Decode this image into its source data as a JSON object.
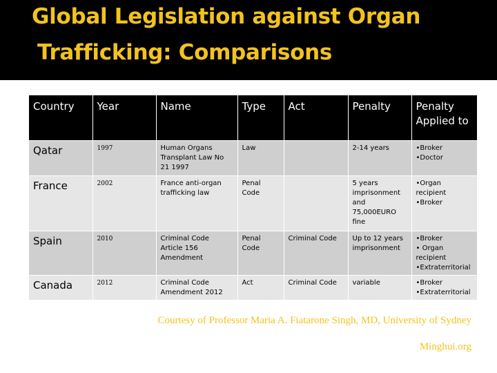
{
  "slide": {
    "title_line1": "Global Legislation against Organ",
    "title_line2": "Trafficking:  Comparisons"
  },
  "table": {
    "headers": [
      "Country",
      "Year",
      "Name",
      "Type",
      "Act",
      "Penalty",
      "Penalty Applied to"
    ],
    "rows": [
      {
        "country": "Qatar",
        "year": "1997",
        "name": "Human Organs Transplant Law No 21 1997",
        "type": "Law",
        "act": "",
        "penalty": "2-14 years",
        "applied_to": [
          "•Broker",
          "•Doctor"
        ]
      },
      {
        "country": "France",
        "year": "2002",
        "name": "France anti-organ trafficking law",
        "type": "Penal Code",
        "act": "",
        "penalty": "5 years imprisonment and 75,000EURO fine",
        "applied_to": [
          "•Organ recipient",
          "•Broker"
        ]
      },
      {
        "country": "Spain",
        "year": "2010",
        "name": "Criminal Code Article 156 Amendment",
        "type": "Penal Code",
        "act": "Criminal Code",
        "penalty": "Up to 12 years imprisonment",
        "applied_to": [
          "•Broker",
          "• Organ recipient",
          "•Extraterritorial"
        ]
      },
      {
        "country": "Canada",
        "year": "2012",
        "name": "Criminal Code Amendment  2012",
        "type": "Act",
        "act": "Criminal Code",
        "penalty": "variable",
        "applied_to": [
          "•Broker",
          "•Extraterritorial"
        ]
      }
    ]
  },
  "credits": {
    "courtesy": "Courtesy of Professor Maria A. Fiatarone Singh, MD, University of Sydney",
    "site": "Minghui.org"
  },
  "colors": {
    "accent": "#f2c31f",
    "header_bg": "#000000",
    "row_odd": "#cfcfcf",
    "row_even": "#e6e6e6"
  }
}
